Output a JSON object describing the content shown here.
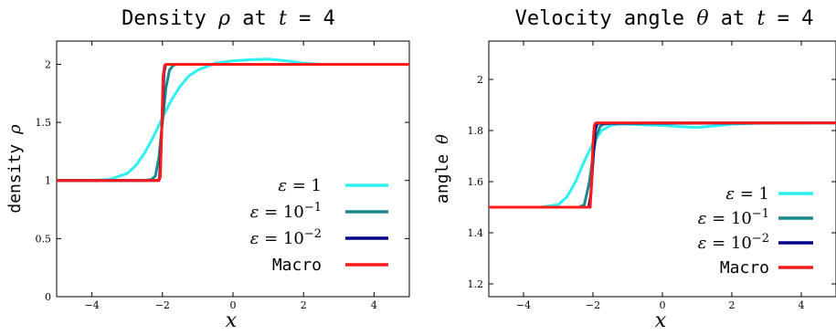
{
  "chart_data": [
    {
      "type": "line",
      "title": "Density ρ at t = 4",
      "xlabel": "x",
      "ylabel": "density ρ",
      "xlim": [
        -5,
        5
      ],
      "ylim": [
        0,
        2.2
      ],
      "xticks": [
        -4,
        -2,
        0,
        2,
        4
      ],
      "yticks": [
        0,
        0.5,
        1,
        1.5,
        2
      ],
      "xtick_labels": [
        "−4",
        "−2",
        "0",
        "2",
        "4"
      ],
      "ytick_labels": [
        "0",
        "0.5",
        "1",
        "1.5",
        "2"
      ],
      "legend_position": "lower-right",
      "grid": false,
      "series": [
        {
          "name": "ε = 1",
          "color": "#2ef0f0",
          "x": [
            -5,
            -4,
            -3.5,
            -3,
            -2.75,
            -2.5,
            -2.25,
            -2,
            -1.75,
            -1.5,
            -1.25,
            -1,
            -0.5,
            0,
            0.5,
            1,
            1.5,
            2,
            2.5,
            3,
            4,
            5
          ],
          "y": [
            1.0,
            1.0,
            1.01,
            1.06,
            1.13,
            1.24,
            1.38,
            1.54,
            1.69,
            1.81,
            1.9,
            1.95,
            2.01,
            2.03,
            2.04,
            2.045,
            2.03,
            2.01,
            2.0,
            2.0,
            2.0,
            2.0
          ]
        },
        {
          "name": "ε = 10⁻¹",
          "color": "#1a8a8a",
          "x": [
            -5,
            -3,
            -2.5,
            -2.3,
            -2.2,
            -2.1,
            -2.0,
            -1.9,
            -1.8,
            -1.7,
            -1.6,
            -1.5,
            -1.3,
            -1.0,
            0,
            1,
            2,
            5
          ],
          "y": [
            1.0,
            1.0,
            1.0,
            1.01,
            1.04,
            1.2,
            1.5,
            1.8,
            1.95,
            1.99,
            2.0,
            2.0,
            2.0,
            2.0,
            2.0,
            2.0,
            2.0,
            2.0
          ]
        },
        {
          "name": "ε = 10⁻²",
          "color": "#00008b",
          "x": [
            -5,
            -2.12,
            -2.08,
            -2.04,
            -2.0,
            -1.96,
            -1.92,
            -1.88,
            5
          ],
          "y": [
            1.0,
            1.0,
            1.02,
            1.3,
            1.6,
            1.92,
            1.99,
            2.0,
            2.0
          ]
        },
        {
          "name": "Macro",
          "color": "#ff1a1a",
          "x": [
            -5,
            -2.1,
            -2.06,
            -2.02,
            -1.98,
            -1.94,
            -1.9,
            5
          ],
          "y": [
            1.0,
            1.0,
            1.03,
            1.45,
            1.9,
            1.99,
            2.0,
            2.0
          ]
        }
      ]
    },
    {
      "type": "line",
      "title": "Velocity angle θ at t = 4",
      "xlabel": "x",
      "ylabel": "angle θ",
      "xlim": [
        -5,
        5
      ],
      "ylim": [
        1.15,
        2.15
      ],
      "xticks": [
        -4,
        -2,
        0,
        2,
        4
      ],
      "yticks": [
        1.2,
        1.4,
        1.6,
        1.8,
        2
      ],
      "xtick_labels": [
        "−4",
        "−2",
        "0",
        "2",
        "4"
      ],
      "ytick_labels": [
        "1.2",
        "1.4",
        "1.6",
        "1.8",
        "2"
      ],
      "legend_position": "lower-right",
      "grid": false,
      "series": [
        {
          "name": "ε = 1",
          "color": "#2ef0f0",
          "x": [
            -5,
            -3.5,
            -3,
            -2.75,
            -2.5,
            -2.25,
            -2,
            -1.75,
            -1.5,
            -1.25,
            -1,
            -0.5,
            0,
            0.5,
            1,
            1.5,
            2,
            3,
            4,
            5
          ],
          "y": [
            1.5,
            1.5,
            1.51,
            1.54,
            1.6,
            1.68,
            1.75,
            1.8,
            1.82,
            1.825,
            1.825,
            1.822,
            1.82,
            1.815,
            1.812,
            1.818,
            1.825,
            1.83,
            1.83,
            1.83
          ]
        },
        {
          "name": "ε = 10⁻¹",
          "color": "#1a8a8a",
          "x": [
            -5,
            -2.4,
            -2.25,
            -2.1,
            -2.0,
            -1.9,
            -1.8,
            -1.7,
            -1.5,
            0,
            5
          ],
          "y": [
            1.5,
            1.5,
            1.51,
            1.6,
            1.7,
            1.78,
            1.815,
            1.825,
            1.828,
            1.83,
            1.83
          ]
        },
        {
          "name": "ε = 10⁻²",
          "color": "#00008b",
          "x": [
            -5,
            -2.12,
            -2.06,
            -2.0,
            -1.94,
            -1.88,
            5
          ],
          "y": [
            1.5,
            1.5,
            1.55,
            1.68,
            1.8,
            1.828,
            1.83
          ]
        },
        {
          "name": "Macro",
          "color": "#ff1a1a",
          "x": [
            -5,
            -2.08,
            -2.04,
            -2.0,
            -1.96,
            -1.92,
            5
          ],
          "y": [
            1.5,
            1.5,
            1.6,
            1.75,
            1.82,
            1.83,
            1.83
          ]
        }
      ]
    }
  ]
}
